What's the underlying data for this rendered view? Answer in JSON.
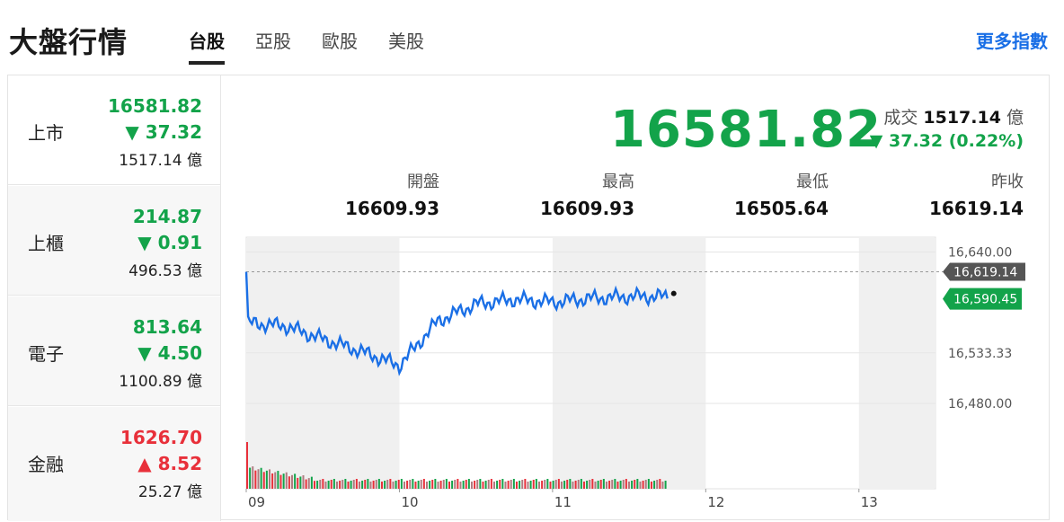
{
  "header": {
    "title": "大盤行情",
    "tabs": [
      {
        "label": "台股",
        "active": true
      },
      {
        "label": "亞股",
        "active": false
      },
      {
        "label": "歐股",
        "active": false
      },
      {
        "label": "美股",
        "active": false
      }
    ],
    "more_link": "更多指數"
  },
  "markets": [
    {
      "name": "上市",
      "price": "16581.82",
      "change": "37.32",
      "direction": "down",
      "volume": "1517.14",
      "unit": "億"
    },
    {
      "name": "上櫃",
      "price": "214.87",
      "change": "0.91",
      "direction": "down",
      "volume": "496.53",
      "unit": "億"
    },
    {
      "name": "電子",
      "price": "813.64",
      "change": "4.50",
      "direction": "down",
      "volume": "1100.89",
      "unit": "億"
    },
    {
      "name": "金融",
      "price": "1626.70",
      "change": "8.52",
      "direction": "up",
      "volume": "25.27",
      "unit": "億"
    }
  ],
  "summary": {
    "price": "16581.82",
    "volume_label": "成交",
    "volume": "1517.14",
    "volume_unit": "億",
    "change": "37.32 (0.22%)",
    "stats": [
      {
        "label": "開盤",
        "value": "16609.93"
      },
      {
        "label": "最高",
        "value": "16609.93"
      },
      {
        "label": "最低",
        "value": "16505.64"
      },
      {
        "label": "昨收",
        "value": "16619.14"
      }
    ]
  },
  "colors": {
    "down": "#13a34a",
    "up": "#e8303a",
    "line": "#1a6fe6",
    "accent": "#1a6fe6"
  },
  "chart_data": {
    "type": "line",
    "x_ticks": [
      "09",
      "10",
      "11",
      "12",
      "13"
    ],
    "y_ticks": [
      "16,640.00",
      "16,533.33",
      "16,480.00"
    ],
    "ylim": [
      16480,
      16640
    ],
    "prev_close": 16619.14,
    "prev_close_label": "16,619.14",
    "current_label": "16,590.45",
    "current_value": 16590.45,
    "x": [
      9.0,
      9.25,
      9.5,
      9.75,
      10.0,
      10.25,
      10.5,
      10.75,
      11.0,
      11.25,
      11.5,
      11.75
    ],
    "values": [
      16565,
      16562,
      16548,
      16535,
      16520,
      16567,
      16585,
      16590,
      16587,
      16591,
      16593,
      16593
    ],
    "volume_bars": "decreasing"
  }
}
